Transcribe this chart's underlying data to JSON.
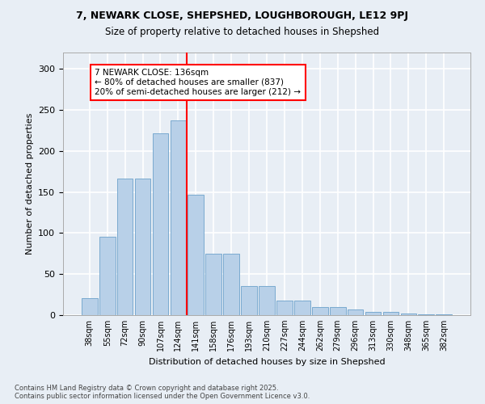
{
  "title_line1": "7, NEWARK CLOSE, SHEPSHED, LOUGHBOROUGH, LE12 9PJ",
  "title_line2": "Size of property relative to detached houses in Shepshed",
  "xlabel": "Distribution of detached houses by size in Shepshed",
  "ylabel": "Number of detached properties",
  "categories": [
    "38sqm",
    "55sqm",
    "72sqm",
    "90sqm",
    "107sqm",
    "124sqm",
    "141sqm",
    "158sqm",
    "176sqm",
    "193sqm",
    "210sqm",
    "227sqm",
    "244sqm",
    "262sqm",
    "279sqm",
    "296sqm",
    "313sqm",
    "330sqm",
    "348sqm",
    "365sqm",
    "382sqm"
  ],
  "values": [
    21,
    96,
    166,
    166,
    222,
    237,
    147,
    75,
    75,
    35,
    35,
    18,
    18,
    10,
    10,
    7,
    4,
    4,
    2,
    1,
    1
  ],
  "bar_color": "#b8d0e8",
  "bar_edge_color": "#7aaad0",
  "vline_color": "red",
  "annotation_text": "7 NEWARK CLOSE: 136sqm\n← 80% of detached houses are smaller (837)\n20% of semi-detached houses are larger (212) →",
  "annotation_box_color": "white",
  "annotation_box_edge": "red",
  "bg_color": "#e8eef5",
  "plot_bg_color": "#e8eef5",
  "grid_color": "white",
  "footnote": "Contains HM Land Registry data © Crown copyright and database right 2025.\nContains public sector information licensed under the Open Government Licence v3.0.",
  "ylim": [
    0,
    320
  ],
  "yticks": [
    0,
    50,
    100,
    150,
    200,
    250,
    300
  ]
}
